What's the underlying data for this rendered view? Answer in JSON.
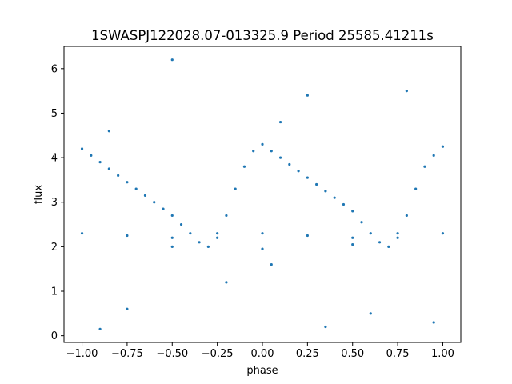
{
  "chart_data": {
    "type": "scatter",
    "title": "1SWASPJ122028.07-013325.9 Period 25585.41211s",
    "xlabel": "phase",
    "ylabel": "flux",
    "xlim": [
      -1.1,
      1.1
    ],
    "ylim": [
      -0.15,
      6.5
    ],
    "xticks": [
      -1.0,
      -0.75,
      -0.5,
      -0.25,
      0.0,
      0.25,
      0.5,
      0.75,
      1.0
    ],
    "xtick_labels": [
      "−1.00",
      "−0.75",
      "−0.50",
      "−0.25",
      "0.00",
      "0.25",
      "0.50",
      "0.75",
      "1.00"
    ],
    "yticks": [
      0,
      1,
      2,
      3,
      4,
      5,
      6
    ],
    "ytick_labels": [
      "0",
      "1",
      "2",
      "3",
      "4",
      "5",
      "6"
    ],
    "grid": false,
    "marker_color": "#1f77b4",
    "series": [
      {
        "values": [
          [
            -1.0,
            4.2
          ],
          [
            -0.95,
            4.05
          ],
          [
            -0.9,
            3.9
          ],
          [
            -0.85,
            3.75
          ],
          [
            -0.8,
            3.6
          ],
          [
            -0.75,
            3.45
          ],
          [
            -0.7,
            3.3
          ],
          [
            -0.65,
            3.15
          ],
          [
            -0.6,
            3.0
          ],
          [
            -0.55,
            2.85
          ],
          [
            -0.5,
            2.7
          ],
          [
            -0.45,
            2.5
          ],
          [
            -0.4,
            2.3
          ],
          [
            -0.35,
            2.1
          ],
          [
            -0.3,
            2.0
          ],
          [
            -0.25,
            2.2
          ],
          [
            -0.2,
            2.7
          ],
          [
            -0.15,
            3.3
          ],
          [
            -0.1,
            3.8
          ],
          [
            -0.05,
            4.15
          ],
          [
            0.0,
            4.3
          ],
          [
            0.05,
            4.15
          ],
          [
            0.1,
            4.0
          ],
          [
            0.15,
            3.85
          ],
          [
            0.2,
            3.7
          ],
          [
            0.25,
            3.55
          ],
          [
            0.3,
            3.4
          ],
          [
            0.35,
            3.25
          ],
          [
            0.4,
            3.1
          ],
          [
            0.45,
            2.95
          ],
          [
            0.5,
            2.8
          ],
          [
            0.55,
            2.55
          ],
          [
            0.6,
            2.3
          ],
          [
            0.65,
            2.1
          ],
          [
            0.7,
            2.0
          ],
          [
            0.75,
            2.2
          ],
          [
            0.8,
            2.7
          ],
          [
            0.85,
            3.3
          ],
          [
            0.9,
            3.8
          ],
          [
            0.95,
            4.05
          ],
          [
            1.0,
            4.25
          ],
          [
            -1.0,
            2.3
          ],
          [
            -0.75,
            2.25
          ],
          [
            -0.5,
            2.2
          ],
          [
            -0.25,
            2.3
          ],
          [
            0.0,
            2.3
          ],
          [
            0.25,
            2.25
          ],
          [
            0.5,
            2.2
          ],
          [
            0.75,
            2.3
          ],
          [
            1.0,
            2.3
          ],
          [
            -0.5,
            2.0
          ],
          [
            0.0,
            1.95
          ],
          [
            0.5,
            2.05
          ],
          [
            -0.85,
            4.6
          ],
          [
            0.1,
            4.8
          ],
          [
            0.25,
            5.4
          ],
          [
            0.8,
            5.5
          ],
          [
            -0.5,
            6.2
          ],
          [
            -0.75,
            0.6
          ],
          [
            0.35,
            0.2
          ],
          [
            0.6,
            0.5
          ],
          [
            0.95,
            0.3
          ],
          [
            -0.9,
            0.15
          ],
          [
            0.05,
            1.6
          ],
          [
            -0.2,
            1.2
          ]
        ]
      }
    ]
  }
}
